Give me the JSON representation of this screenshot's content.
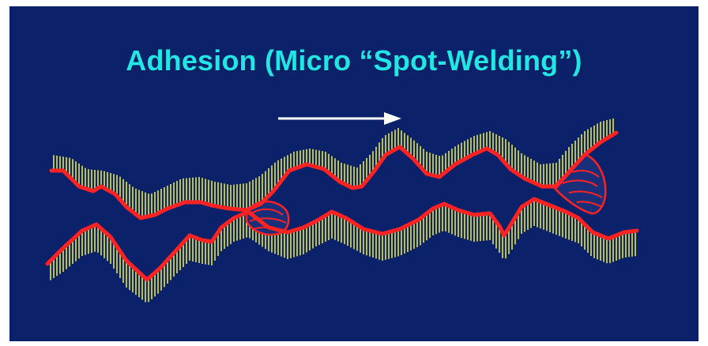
{
  "slide": {
    "title": "Adhesion (Micro “Spot-Welding”)"
  },
  "colors": {
    "background": "#0b2169",
    "title": "#20e6e6",
    "surface_outline": "#ff2222",
    "surface_hatch": "#e8e83a",
    "arrow": "#ffffff",
    "weld_fill": "#1a2f7a"
  },
  "icons": {
    "direction": "right-arrow-icon"
  }
}
